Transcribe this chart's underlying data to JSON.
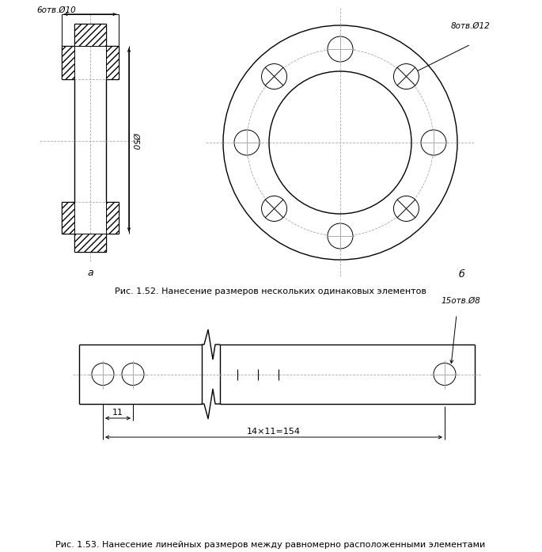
{
  "bg_color": "#ffffff",
  "line_color": "#000000",
  "dash_color": "#aaaaaa",
  "fig1_label": "а",
  "fig2_label": "б",
  "caption1": "Рис. 1.52. Нанесение размеров нескольких одинаковых элементов",
  "caption2": "Рис. 1.53. Нанесение линейных размеров между равномерно расположенными элементами",
  "annot_holes_side": "6отв.Ø10",
  "annot_diam_side": "Ø50",
  "annot_holes_front": "8отв.Ø12",
  "annot_holes_bottom": "15отв.Ø8",
  "annot_dim1": "11",
  "annot_dim2": "14×11=154"
}
